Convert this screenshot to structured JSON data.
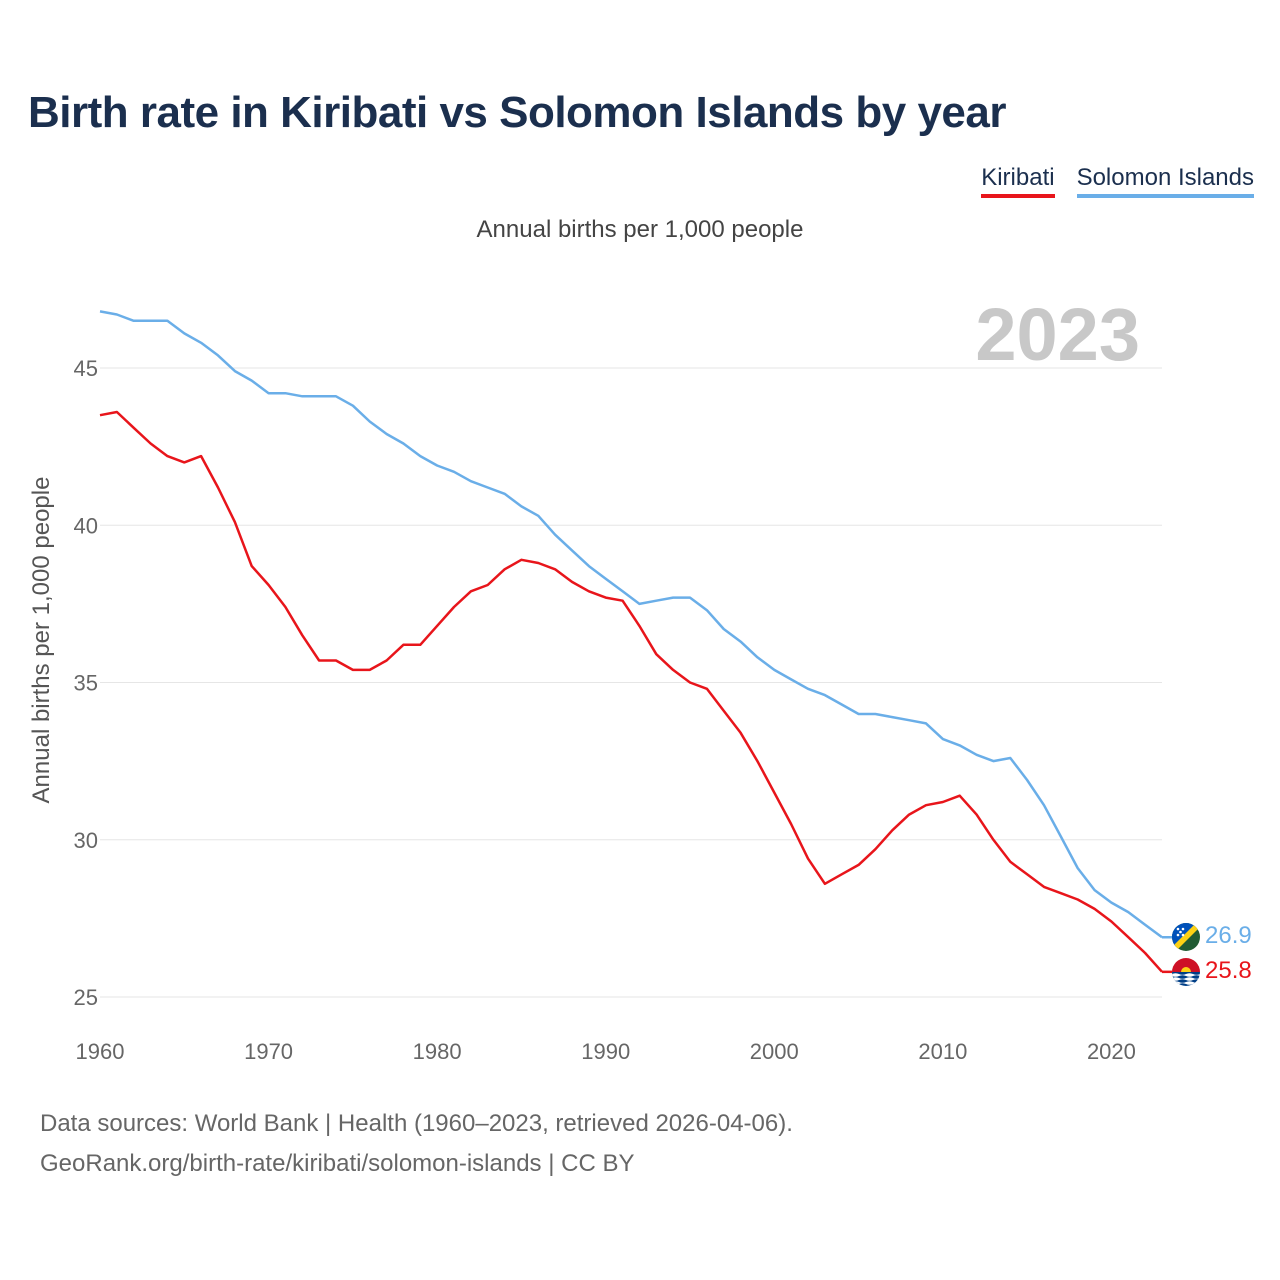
{
  "title": "Birth rate in Kiribati vs Solomon Islands by year",
  "subtitle": "Annual births per 1,000 people",
  "footer": {
    "line1": "Data sources: World Bank | Health (1960–2023, retrieved 2026-04-06).",
    "line2": "GeoRank.org/birth-rate/kiribati/solomon-islands | CC BY"
  },
  "legend": {
    "kiribati": "Kiribati",
    "solomon": "Solomon Islands"
  },
  "colors": {
    "kiribati": "#e8151b",
    "solomon": "#6aaee8",
    "title": "#1b2f4e",
    "year": "#c8c8c8",
    "grid": "#e6e6e6"
  },
  "icons": {
    "kiribati_flag": "kiribati-flag-icon",
    "solomon_flag": "solomon-islands-flag-icon"
  },
  "chart_data": {
    "type": "line",
    "title": "Birth rate in Kiribati vs Solomon Islands by year",
    "xlabel": "",
    "ylabel": "Annual births per 1,000 people",
    "year_watermark": "2023",
    "xlim": [
      1960,
      2023
    ],
    "ylim": [
      25,
      47
    ],
    "xticks": [
      1960,
      1970,
      1980,
      1990,
      2000,
      2010,
      2020
    ],
    "yticks": [
      25,
      30,
      35,
      40,
      45
    ],
    "x": [
      1960,
      1961,
      1962,
      1963,
      1964,
      1965,
      1966,
      1967,
      1968,
      1969,
      1970,
      1971,
      1972,
      1973,
      1974,
      1975,
      1976,
      1977,
      1978,
      1979,
      1980,
      1981,
      1982,
      1983,
      1984,
      1985,
      1986,
      1987,
      1988,
      1989,
      1990,
      1991,
      1992,
      1993,
      1994,
      1995,
      1996,
      1997,
      1998,
      1999,
      2000,
      2001,
      2002,
      2003,
      2004,
      2005,
      2006,
      2007,
      2008,
      2009,
      2010,
      2011,
      2012,
      2013,
      2014,
      2015,
      2016,
      2017,
      2018,
      2019,
      2020,
      2021,
      2022,
      2023
    ],
    "series": [
      {
        "name": "Kiribati",
        "end_label": "25.8",
        "values": [
          43.5,
          43.6,
          43.1,
          42.6,
          42.2,
          42.0,
          42.2,
          41.2,
          40.1,
          38.7,
          38.1,
          37.4,
          36.5,
          35.7,
          35.7,
          35.4,
          35.4,
          35.7,
          36.2,
          36.2,
          36.8,
          37.4,
          37.9,
          38.1,
          38.6,
          38.9,
          38.8,
          38.6,
          38.2,
          37.9,
          37.7,
          37.6,
          36.8,
          35.9,
          35.4,
          35.0,
          34.8,
          34.1,
          33.4,
          32.5,
          31.5,
          30.5,
          29.4,
          28.6,
          28.9,
          29.2,
          29.7,
          30.3,
          30.8,
          31.1,
          31.2,
          31.4,
          30.8,
          30.0,
          29.3,
          28.9,
          28.5,
          28.3,
          28.1,
          27.8,
          27.4,
          26.9,
          26.4,
          25.8
        ]
      },
      {
        "name": "Solomon Islands",
        "end_label": "26.9",
        "values": [
          46.8,
          46.7,
          46.5,
          46.5,
          46.5,
          46.1,
          45.8,
          45.4,
          44.9,
          44.6,
          44.2,
          44.2,
          44.1,
          44.1,
          44.1,
          43.8,
          43.3,
          42.9,
          42.6,
          42.2,
          41.9,
          41.7,
          41.4,
          41.2,
          41.0,
          40.6,
          40.3,
          39.7,
          39.2,
          38.7,
          38.3,
          37.9,
          37.5,
          37.6,
          37.7,
          37.7,
          37.3,
          36.7,
          36.3,
          35.8,
          35.4,
          35.1,
          34.8,
          34.6,
          34.3,
          34.0,
          34.0,
          33.9,
          33.8,
          33.7,
          33.2,
          33.0,
          32.7,
          32.5,
          32.6,
          31.9,
          31.1,
          30.1,
          29.1,
          28.4,
          28.0,
          27.7,
          27.3,
          26.9
        ]
      }
    ]
  }
}
